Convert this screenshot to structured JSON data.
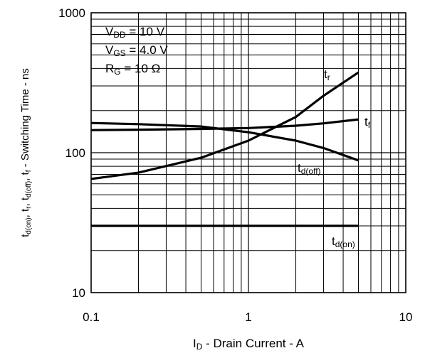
{
  "chart_data": {
    "type": "line",
    "log_x": true,
    "log_y": true,
    "grid": true,
    "xlabel": {
      "symbol": "I",
      "sub": "D",
      "text": " - Drain Current - A"
    },
    "ylabel_parts": [
      "t",
      "d(on)",
      ", t",
      "r",
      ", t",
      "d(off)",
      ", t",
      "f",
      " - Switching Time - ns"
    ],
    "conditions": [
      {
        "symbol": "V",
        "sub": "DD",
        "text": " = 10 V"
      },
      {
        "symbol": "V",
        "sub": "GS",
        "text": " = 4.0 V"
      },
      {
        "symbol": "R",
        "sub": "G",
        "text": " = 10 Ω"
      }
    ],
    "xlim": [
      0.1,
      10
    ],
    "xticks": [
      0.1,
      1,
      10
    ],
    "ylim": [
      10,
      1000
    ],
    "yticks": [
      10,
      100,
      1000
    ],
    "x": [
      0.1,
      0.2,
      0.5,
      1,
      2,
      3,
      5
    ],
    "series": [
      {
        "name": "t",
        "name_sub": "r",
        "color": "#000000",
        "values": [
          65,
          72,
          92,
          122,
          180,
          255,
          375
        ]
      },
      {
        "name": "t",
        "name_sub": "f",
        "color": "#000000",
        "values": [
          145,
          146,
          148,
          150,
          156,
          162,
          173
        ]
      },
      {
        "name": "t",
        "name_sub": "d(off)",
        "color": "#000000",
        "values": [
          163,
          160,
          154,
          140,
          122,
          108,
          88
        ]
      },
      {
        "name": "t",
        "name_sub": "d(on)",
        "color": "#000000",
        "values": [
          30,
          30,
          30,
          30,
          30,
          30,
          30
        ]
      }
    ]
  }
}
